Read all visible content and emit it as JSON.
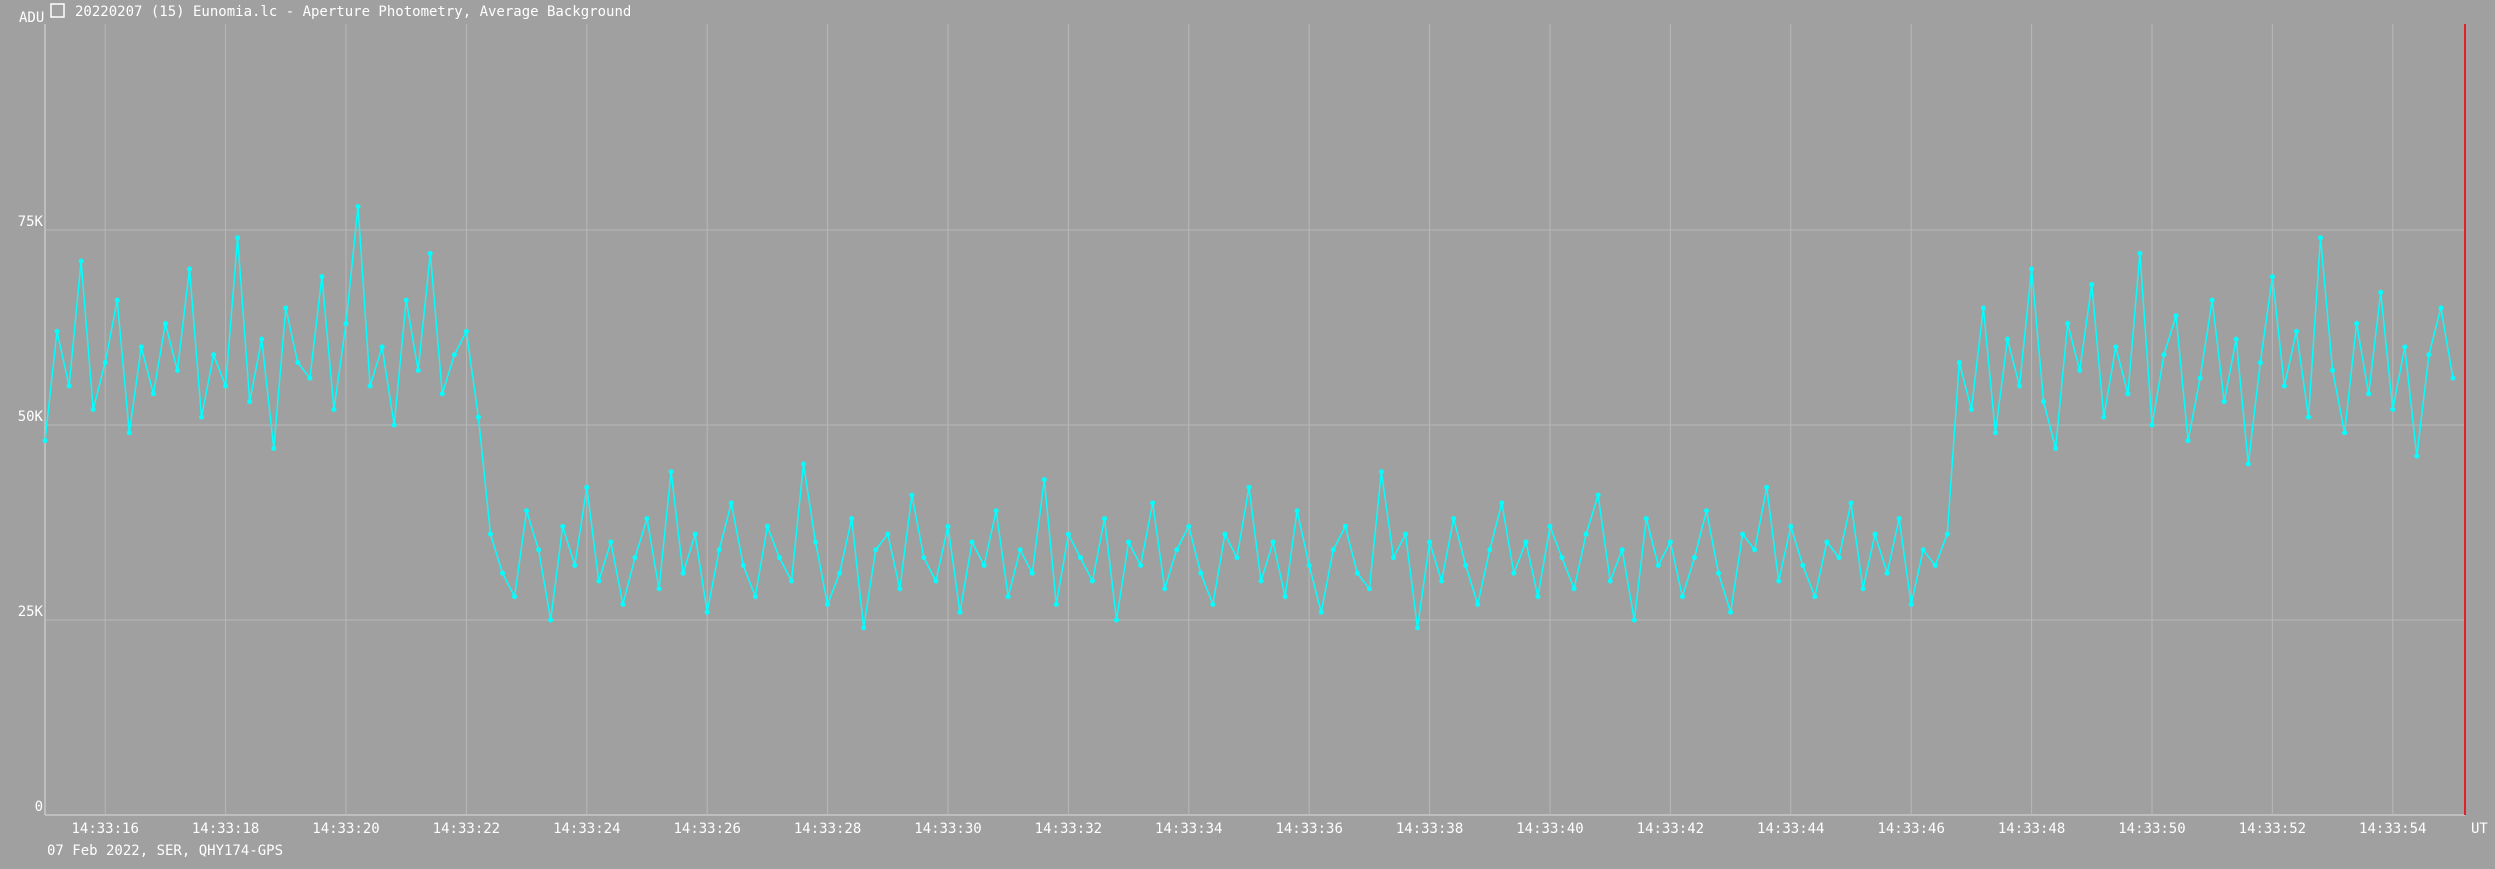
{
  "header": {
    "title": "20220207 (15) Eunomia.lc - Aperture Photometry, Average Background"
  },
  "footer": {
    "text": "07 Feb 2022, SER, QHY174-GPS"
  },
  "chart_data": {
    "type": "line",
    "y_label": "ADU",
    "x_label": "UT",
    "xlim": [
      15.0,
      55.2
    ],
    "ylim": [
      0,
      101400
    ],
    "xticks": [
      {
        "value": 16,
        "label": "14:33:16"
      },
      {
        "value": 18,
        "label": "14:33:18"
      },
      {
        "value": 20,
        "label": "14:33:20"
      },
      {
        "value": 22,
        "label": "14:33:22"
      },
      {
        "value": 24,
        "label": "14:33:24"
      },
      {
        "value": 26,
        "label": "14:33:26"
      },
      {
        "value": 28,
        "label": "14:33:28"
      },
      {
        "value": 30,
        "label": "14:33:30"
      },
      {
        "value": 32,
        "label": "14:33:32"
      },
      {
        "value": 34,
        "label": "14:33:34"
      },
      {
        "value": 36,
        "label": "14:33:36"
      },
      {
        "value": 38,
        "label": "14:33:38"
      },
      {
        "value": 40,
        "label": "14:33:40"
      },
      {
        "value": 42,
        "label": "14:33:42"
      },
      {
        "value": 44,
        "label": "14:33:44"
      },
      {
        "value": 46,
        "label": "14:33:46"
      },
      {
        "value": 48,
        "label": "14:33:48"
      },
      {
        "value": 50,
        "label": "14:33:50"
      },
      {
        "value": 52,
        "label": "14:33:52"
      },
      {
        "value": 54,
        "label": "14:33:54"
      }
    ],
    "yticks": [
      0,
      {
        "value": 25000,
        "label": "25K"
      },
      {
        "value": 50000,
        "label": "50K"
      },
      {
        "value": 75000,
        "label": "75K"
      }
    ],
    "grid": true,
    "x": [
      15,
      15.2,
      15.4,
      15.6,
      15.8,
      16,
      16.2,
      16.4,
      16.6,
      16.8,
      17,
      17.2,
      17.4,
      17.6,
      17.8,
      18,
      18.2,
      18.4,
      18.6,
      18.8,
      19,
      19.2,
      19.4,
      19.6,
      19.8,
      20,
      20.2,
      20.4,
      20.6,
      20.8,
      21,
      21.2,
      21.4,
      21.6,
      21.8,
      22,
      22.2,
      22.4,
      22.6,
      22.8,
      23,
      23.2,
      23.4,
      23.6,
      23.8,
      24,
      24.2,
      24.4,
      24.6,
      24.8,
      25,
      25.2,
      25.4,
      25.6,
      25.8,
      26,
      26.2,
      26.4,
      26.6,
      26.8,
      27,
      27.2,
      27.4,
      27.6,
      27.8,
      28,
      28.2,
      28.4,
      28.6,
      28.8,
      29,
      29.2,
      29.4,
      29.6,
      29.8,
      30,
      30.2,
      30.4,
      30.6,
      30.8,
      31,
      31.2,
      31.4,
      31.6,
      31.8,
      32,
      32.2,
      32.4,
      32.6,
      32.8,
      33,
      33.2,
      33.4,
      33.6,
      33.8,
      34,
      34.2,
      34.4,
      34.6,
      34.8,
      35,
      35.2,
      35.4,
      35.6,
      35.8,
      36,
      36.2,
      36.4,
      36.6,
      36.8,
      37,
      37.2,
      37.4,
      37.6,
      37.8,
      38,
      38.2,
      38.4,
      38.6,
      38.8,
      39,
      39.2,
      39.4,
      39.6,
      39.8,
      40,
      40.2,
      40.4,
      40.6,
      40.8,
      41,
      41.2,
      41.4,
      41.6,
      41.8,
      42,
      42.2,
      42.4,
      42.6,
      42.8,
      43,
      43.2,
      43.4,
      43.6,
      43.8,
      44,
      44.2,
      44.4,
      44.6,
      44.8,
      45,
      45.2,
      45.4,
      45.6,
      45.8,
      46,
      46.2,
      46.4,
      46.6,
      46.8,
      47,
      47.2,
      47.4,
      47.6,
      47.8,
      48,
      48.2,
      48.4,
      48.6,
      48.8,
      49,
      49.2,
      49.4,
      49.6,
      49.8,
      50,
      50.2,
      50.4,
      50.6,
      50.8,
      51,
      51.2,
      51.4,
      51.6,
      51.8,
      52,
      52.2,
      52.4,
      52.6,
      52.8,
      53,
      53.2,
      53.4,
      53.6,
      53.8,
      54,
      54.2,
      54.4,
      54.6,
      54.8,
      55
    ],
    "series": [
      {
        "color": "#00ffff",
        "values": [
          48000,
          62000,
          55000,
          71000,
          52000,
          58000,
          66000,
          49000,
          60000,
          54000,
          63000,
          57000,
          70000,
          51000,
          59000,
          55000,
          74000,
          53000,
          61000,
          47000,
          65000,
          58000,
          56000,
          69000,
          52000,
          63000,
          78000,
          55000,
          60000,
          50000,
          66000,
          57000,
          72000,
          54000,
          59000,
          62000,
          51000,
          36000,
          31000,
          28000,
          39000,
          34000,
          25000,
          37000,
          32000,
          42000,
          30000,
          35000,
          27000,
          33000,
          38000,
          29000,
          44000,
          31000,
          36000,
          26000,
          34000,
          40000,
          32000,
          28000,
          37000,
          33000,
          30000,
          45000,
          35000,
          27000,
          31000,
          38000,
          24000,
          34000,
          36000,
          29000,
          41000,
          33000,
          30000,
          37000,
          26000,
          35000,
          32000,
          39000,
          28000,
          34000,
          31000,
          43000,
          27000,
          36000,
          33000,
          30000,
          38000,
          25000,
          35000,
          32000,
          40000,
          29000,
          34000,
          37000,
          31000,
          27000,
          36000,
          33000,
          42000,
          30000,
          35000,
          28000,
          39000,
          32000,
          26000,
          34000,
          37000,
          31000,
          29000,
          44000,
          33000,
          36000,
          24000,
          35000,
          30000,
          38000,
          32000,
          27000,
          34000,
          40000,
          31000,
          35000,
          28000,
          37000,
          33000,
          29000,
          36000,
          41000,
          30000,
          34000,
          25000,
          38000,
          32000,
          35000,
          28000,
          33000,
          39000,
          31000,
          26000,
          36000,
          34000,
          42000,
          30000,
          37000,
          32000,
          28000,
          35000,
          33000,
          40000,
          29000,
          36000,
          31000,
          38000,
          27000,
          34000,
          32000,
          36000,
          58000,
          52000,
          65000,
          49000,
          61000,
          55000,
          70000,
          53000,
          47000,
          63000,
          57000,
          68000,
          51000,
          60000,
          54000,
          72000,
          50000,
          59000,
          64000,
          48000,
          56000,
          66000,
          53000,
          61000,
          45000,
          58000,
          69000,
          55000,
          62000,
          51000,
          74000,
          57000,
          49000,
          63000,
          54000,
          67000,
          52000,
          60000,
          46000,
          59000,
          65000,
          56000
        ]
      }
    ]
  }
}
